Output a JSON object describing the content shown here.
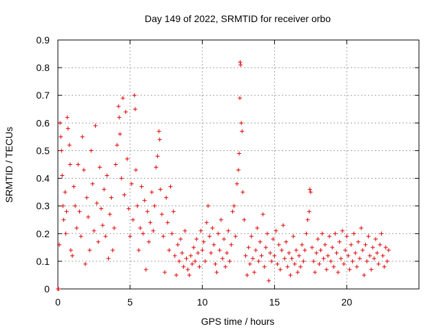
{
  "chart_data": {
    "type": "scatter",
    "title": "Day 149 of 2022, SRMTID for receiver orbo",
    "xlabel": "GPS time / hours",
    "ylabel": "SRMTID / TECUs",
    "xlim": [
      0,
      25
    ],
    "ylim": [
      0,
      0.9
    ],
    "xticks": [
      0,
      5,
      10,
      15,
      20
    ],
    "yticks": [
      0,
      0.1,
      0.2,
      0.3,
      0.4,
      0.5,
      0.6,
      0.7,
      0.8,
      0.9
    ],
    "xtick_labels": [
      "0",
      "5",
      "10",
      "15",
      "20"
    ],
    "ytick_labels": [
      "0",
      "0.1",
      "0.2",
      "0.3",
      "0.4",
      "0.5",
      "0.6",
      "0.7",
      "0.8",
      "0.9"
    ],
    "grid": true,
    "marker": "+",
    "color": "#e00000",
    "series": [
      {
        "name": "SRMTID",
        "points": [
          [
            0.0,
            0.0
          ],
          [
            0.05,
            0.0
          ],
          [
            0.1,
            0.16
          ],
          [
            0.15,
            0.6
          ],
          [
            0.2,
            0.55
          ],
          [
            0.25,
            0.5
          ],
          [
            0.3,
            0.41
          ],
          [
            0.35,
            0.3
          ],
          [
            0.4,
            0.25
          ],
          [
            0.5,
            0.35
          ],
          [
            0.55,
            0.2
          ],
          [
            0.6,
            0.28
          ],
          [
            0.65,
            0.62
          ],
          [
            0.7,
            0.58
          ],
          [
            0.8,
            0.52
          ],
          [
            0.85,
            0.45
          ],
          [
            0.9,
            0.14
          ],
          [
            1.0,
            0.12
          ],
          [
            1.1,
            0.37
          ],
          [
            1.2,
            0.3
          ],
          [
            1.3,
            0.22
          ],
          [
            1.4,
            0.45
          ],
          [
            1.5,
            0.28
          ],
          [
            1.6,
            0.19
          ],
          [
            1.7,
            0.55
          ],
          [
            1.8,
            0.43
          ],
          [
            1.9,
            0.09
          ],
          [
            2.0,
            0.33
          ],
          [
            2.1,
            0.26
          ],
          [
            2.2,
            0.14
          ],
          [
            2.3,
            0.5
          ],
          [
            2.4,
            0.38
          ],
          [
            2.5,
            0.21
          ],
          [
            2.6,
            0.59
          ],
          [
            2.7,
            0.31
          ],
          [
            2.8,
            0.17
          ],
          [
            2.9,
            0.44
          ],
          [
            3.0,
            0.29
          ],
          [
            3.1,
            0.23
          ],
          [
            3.2,
            0.36
          ],
          [
            3.3,
            0.19
          ],
          [
            3.4,
            0.41
          ],
          [
            3.5,
            0.11
          ],
          [
            3.6,
            0.27
          ],
          [
            3.7,
            0.33
          ],
          [
            3.8,
            0.14
          ],
          [
            3.9,
            0.22
          ],
          [
            4.0,
            0.45
          ],
          [
            4.1,
            0.52
          ],
          [
            4.2,
            0.66
          ],
          [
            4.25,
            0.62
          ],
          [
            4.3,
            0.56
          ],
          [
            4.4,
            0.4
          ],
          [
            4.5,
            0.69
          ],
          [
            4.6,
            0.34
          ],
          [
            4.7,
            0.64
          ],
          [
            4.8,
            0.47
          ],
          [
            4.9,
            0.29
          ],
          [
            5.0,
            0.19
          ],
          [
            5.1,
            0.38
          ],
          [
            5.2,
            0.25
          ],
          [
            5.3,
            0.7
          ],
          [
            5.35,
            0.65
          ],
          [
            5.4,
            0.43
          ],
          [
            5.5,
            0.3
          ],
          [
            5.6,
            0.14
          ],
          [
            5.7,
            0.22
          ],
          [
            5.8,
            0.37
          ],
          [
            5.9,
            0.2
          ],
          [
            6.0,
            0.32
          ],
          [
            6.1,
            0.07
          ],
          [
            6.2,
            0.28
          ],
          [
            6.3,
            0.17
          ],
          [
            6.4,
            0.24
          ],
          [
            6.5,
            0.35
          ],
          [
            6.6,
            0.21
          ],
          [
            6.7,
            0.3
          ],
          [
            6.8,
            0.44
          ],
          [
            6.9,
            0.48
          ],
          [
            7.0,
            0.57
          ],
          [
            7.05,
            0.54
          ],
          [
            7.1,
            0.36
          ],
          [
            7.2,
            0.27
          ],
          [
            7.3,
            0.19
          ],
          [
            7.4,
            0.06
          ],
          [
            7.5,
            0.33
          ],
          [
            7.6,
            0.24
          ],
          [
            7.7,
            0.14
          ],
          [
            7.8,
            0.37
          ],
          [
            7.9,
            0.2
          ],
          [
            8.0,
            0.28
          ],
          [
            8.1,
            0.12
          ],
          [
            8.2,
            0.05
          ],
          [
            8.3,
            0.16
          ],
          [
            8.4,
            0.1
          ],
          [
            8.5,
            0.18
          ],
          [
            8.6,
            0.13
          ],
          [
            8.7,
            0.08
          ],
          [
            8.8,
            0.21
          ],
          [
            8.9,
            0.11
          ],
          [
            9.0,
            0.07
          ],
          [
            9.1,
            0.05
          ],
          [
            9.2,
            0.12
          ],
          [
            9.3,
            0.09
          ],
          [
            9.4,
            0.15
          ],
          [
            9.5,
            0.1
          ],
          [
            9.6,
            0.18
          ],
          [
            9.7,
            0.13
          ],
          [
            9.8,
            0.08
          ],
          [
            9.9,
            0.21
          ],
          [
            10.0,
            0.14
          ],
          [
            10.1,
            0.17
          ],
          [
            10.2,
            0.1
          ],
          [
            10.3,
            0.24
          ],
          [
            10.4,
            0.3
          ],
          [
            10.5,
            0.19
          ],
          [
            10.6,
            0.13
          ],
          [
            10.7,
            0.22
          ],
          [
            10.8,
            0.16
          ],
          [
            10.9,
            0.09
          ],
          [
            11.0,
            0.06
          ],
          [
            11.1,
            0.2
          ],
          [
            11.2,
            0.14
          ],
          [
            11.3,
            0.25
          ],
          [
            11.4,
            0.11
          ],
          [
            11.5,
            0.18
          ],
          [
            11.6,
            0.08
          ],
          [
            11.7,
            0.13
          ],
          [
            11.8,
            0.21
          ],
          [
            11.9,
            0.1
          ],
          [
            12.0,
            0.16
          ],
          [
            12.1,
            0.28
          ],
          [
            12.2,
            0.3
          ],
          [
            12.3,
            0.19
          ],
          [
            12.4,
            0.38
          ],
          [
            12.5,
            0.43
          ],
          [
            12.55,
            0.49
          ],
          [
            12.6,
            0.69
          ],
          [
            12.62,
            0.82
          ],
          [
            12.65,
            0.81
          ],
          [
            12.7,
            0.6
          ],
          [
            12.75,
            0.57
          ],
          [
            12.8,
            0.35
          ],
          [
            12.9,
            0.25
          ],
          [
            13.0,
            0.12
          ],
          [
            13.1,
            0.05
          ],
          [
            13.2,
            0.15
          ],
          [
            13.3,
            0.09
          ],
          [
            13.4,
            0.19
          ],
          [
            13.5,
            0.11
          ],
          [
            13.6,
            0.06
          ],
          [
            13.7,
            0.14
          ],
          [
            13.8,
            0.22
          ],
          [
            13.9,
            0.1
          ],
          [
            14.0,
            0.17
          ],
          [
            14.1,
            0.12
          ],
          [
            14.2,
            0.27
          ],
          [
            14.3,
            0.08
          ],
          [
            14.4,
            0.15
          ],
          [
            14.5,
            0.2
          ],
          [
            14.6,
            0.03
          ],
          [
            14.7,
            0.13
          ],
          [
            14.8,
            0.1
          ],
          [
            14.9,
            0.18
          ],
          [
            15.0,
            0.12
          ],
          [
            15.1,
            0.21
          ],
          [
            15.2,
            0.09
          ],
          [
            15.3,
            0.16
          ],
          [
            15.4,
            0.07
          ],
          [
            15.5,
            0.14
          ],
          [
            15.6,
            0.23
          ],
          [
            15.7,
            0.11
          ],
          [
            15.8,
            0.17
          ],
          [
            15.9,
            0.08
          ],
          [
            16.0,
            0.13
          ],
          [
            16.1,
            0.05
          ],
          [
            16.2,
            0.11
          ],
          [
            16.3,
            0.19
          ],
          [
            16.4,
            0.09
          ],
          [
            16.5,
            0.14
          ],
          [
            16.6,
            0.06
          ],
          [
            16.7,
            0.12
          ],
          [
            16.8,
            0.08
          ],
          [
            16.9,
            0.16
          ],
          [
            17.0,
            0.1
          ],
          [
            17.1,
            0.14
          ],
          [
            17.2,
            0.2
          ],
          [
            17.3,
            0.25
          ],
          [
            17.4,
            0.28
          ],
          [
            17.45,
            0.36
          ],
          [
            17.5,
            0.35
          ],
          [
            17.6,
            0.15
          ],
          [
            17.7,
            0.1
          ],
          [
            17.8,
            0.06
          ],
          [
            17.9,
            0.13
          ],
          [
            18.0,
            0.18
          ],
          [
            18.1,
            0.09
          ],
          [
            18.2,
            0.14
          ],
          [
            18.3,
            0.2
          ],
          [
            18.4,
            0.11
          ],
          [
            18.5,
            0.16
          ],
          [
            18.6,
            0.07
          ],
          [
            18.7,
            0.12
          ],
          [
            18.8,
            0.19
          ],
          [
            18.9,
            0.1
          ],
          [
            19.0,
            0.15
          ],
          [
            19.1,
            0.08
          ],
          [
            19.2,
            0.2
          ],
          [
            19.3,
            0.13
          ],
          [
            19.4,
            0.06
          ],
          [
            19.5,
            0.17
          ],
          [
            19.6,
            0.11
          ],
          [
            19.7,
            0.21
          ],
          [
            19.8,
            0.09
          ],
          [
            19.9,
            0.14
          ],
          [
            20.0,
            0.19
          ],
          [
            20.1,
            0.12
          ],
          [
            20.2,
            0.07
          ],
          [
            20.3,
            0.16
          ],
          [
            20.4,
            0.1
          ],
          [
            20.5,
            0.2
          ],
          [
            20.6,
            0.13
          ],
          [
            20.7,
            0.08
          ],
          [
            20.8,
            0.17
          ],
          [
            20.9,
            0.11
          ],
          [
            21.0,
            0.22
          ],
          [
            21.1,
            0.14
          ],
          [
            21.2,
            0.05
          ],
          [
            21.3,
            0.16
          ],
          [
            21.4,
            0.1
          ],
          [
            21.5,
            0.19
          ],
          [
            21.6,
            0.12
          ],
          [
            21.7,
            0.07
          ],
          [
            21.8,
            0.15
          ],
          [
            21.9,
            0.11
          ],
          [
            22.0,
            0.18
          ],
          [
            22.1,
            0.13
          ],
          [
            22.2,
            0.09
          ],
          [
            22.3,
            0.16
          ],
          [
            22.4,
            0.2
          ],
          [
            22.5,
            0.12
          ],
          [
            22.6,
            0.08
          ],
          [
            22.7,
            0.15
          ],
          [
            22.8,
            0.1
          ],
          [
            22.9,
            0.14
          ]
        ]
      }
    ]
  }
}
